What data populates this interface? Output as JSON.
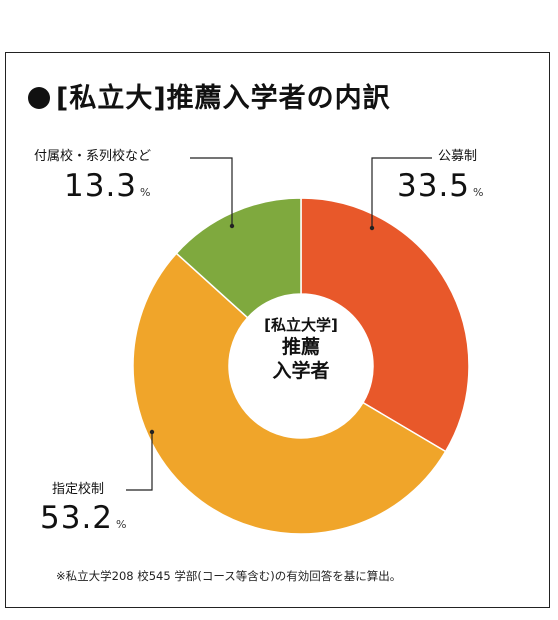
{
  "title": "[私立大]推薦入学者の内訳",
  "center_label": {
    "line1": "[私立大学]",
    "line2": "推薦",
    "line3": "入学者"
  },
  "percent_unit": "%",
  "footnote": "※私立大学208 校545 学部(コース等含む)の有効回答を基に算出。",
  "chart_data": {
    "type": "pie",
    "donut": true,
    "title": "[私立大]推薦入学者の内訳",
    "slices": [
      {
        "label": "公募制",
        "value": 33.5,
        "value_label": "33.5",
        "color": "#E8582A"
      },
      {
        "label": "指定校制",
        "value": 53.2,
        "value_label": "53.2",
        "color": "#F0A52A"
      },
      {
        "label": "付属校・系列校など",
        "value": 13.3,
        "value_label": "13.3",
        "color": "#7FA93E"
      }
    ]
  }
}
